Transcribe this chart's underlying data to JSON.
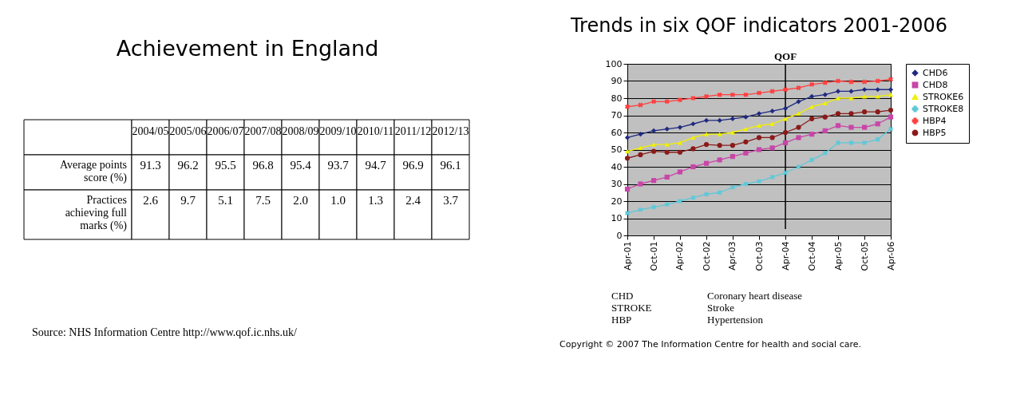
{
  "chart_data": [
    {
      "type": "other",
      "title": "Achievement in England",
      "categories": [
        "2004/05",
        "2005/06",
        "2006/07",
        "2007/08",
        "2008/09",
        "2009/10",
        "2010/11",
        "2011/12",
        "2012/13"
      ],
      "data_labels": true,
      "series": [
        {
          "name": "Average points score (%)",
          "values": [
            91.3,
            96.2,
            95.5,
            96.8,
            95.4,
            93.7,
            94.7,
            96.9,
            96.1
          ]
        },
        {
          "name": "Practices achieving full marks (%)",
          "values": [
            2.6,
            9.7,
            5.1,
            7.5,
            2.0,
            1.0,
            1.3,
            2.4,
            3.7
          ],
          "value_labels": [
            "2.6",
            "9.7",
            "5.1",
            "7.5",
            "2.0",
            "1.0",
            "1.3",
            "2.4",
            "3.7"
          ]
        }
      ],
      "annotations": [
        "Source: NHS Information Centre http://www.qof.ic.nhs.uk/"
      ]
    },
    {
      "type": "line",
      "title": "Trends in six QOF indicators 2001-2006",
      "x": [
        "2001-04",
        "2001-07",
        "2001-10",
        "2002-01",
        "2002-04",
        "2002-07",
        "2002-10",
        "2003-01",
        "2003-04",
        "2003-07",
        "2003-10",
        "2004-01",
        "2004-04",
        "2004-07",
        "2004-10",
        "2005-01",
        "2005-04",
        "2005-07",
        "2005-10",
        "2006-01",
        "2006-04"
      ],
      "xlim": [
        "2001-04",
        "2006-04"
      ],
      "xticks": [
        {
          "value": "2001-04",
          "label": "Apr-01"
        },
        {
          "value": "2001-10",
          "label": "Oct-01"
        },
        {
          "value": "2002-04",
          "label": "Apr-02"
        },
        {
          "value": "2002-10",
          "label": "Oct-02"
        },
        {
          "value": "2003-04",
          "label": "Apr-03"
        },
        {
          "value": "2003-10",
          "label": "Oct-03"
        },
        {
          "value": "2004-04",
          "label": "Apr-04"
        },
        {
          "value": "2004-10",
          "label": "Oct-04"
        },
        {
          "value": "2005-04",
          "label": "Apr-05"
        },
        {
          "value": "2005-10",
          "label": "Oct-05"
        },
        {
          "value": "2006-04",
          "label": "Apr-06"
        }
      ],
      "ylim": [
        0,
        100
      ],
      "yticks": [
        0,
        10,
        20,
        30,
        40,
        50,
        60,
        70,
        80,
        90,
        100
      ],
      "grid": "y",
      "legend": "right",
      "series": [
        {
          "name": "CHD6",
          "color": "#1f2a80",
          "marker": "diamond",
          "values": [
            57,
            59,
            61,
            62,
            63,
            65,
            67,
            67,
            68,
            69,
            71,
            72.5,
            74,
            78,
            81,
            82,
            84,
            84,
            85,
            85,
            85
          ]
        },
        {
          "name": "CHD8",
          "color": "#c846a8",
          "marker": "square",
          "values": [
            27,
            30,
            32,
            34,
            37,
            40,
            42,
            44,
            46,
            48,
            50,
            51,
            54,
            57,
            59,
            61,
            64,
            63,
            63,
            65,
            69
          ]
        },
        {
          "name": "STROKE6",
          "color": "#f0f000",
          "marker": "triangle",
          "values": [
            49,
            51,
            53,
            53,
            54,
            57,
            59,
            59,
            60,
            62,
            64,
            65,
            68,
            71,
            75,
            77,
            80,
            80,
            81,
            81,
            82
          ]
        },
        {
          "name": "STROKE8",
          "color": "#5fc8d8",
          "marker": "cross",
          "values": [
            13,
            15,
            16.5,
            18,
            20,
            22,
            24,
            25,
            28,
            30,
            31.5,
            34,
            36.5,
            40,
            44,
            48,
            54,
            54,
            54,
            56,
            62
          ]
        },
        {
          "name": "HBP4",
          "color": "#ff4040",
          "marker": "cross",
          "values": [
            75,
            76,
            78,
            78,
            79,
            80,
            81,
            82,
            82,
            82,
            83,
            84,
            85,
            86,
            88,
            89,
            90,
            89.5,
            89.5,
            90,
            91
          ]
        },
        {
          "name": "HBP5",
          "color": "#8b1a1a",
          "marker": "circle",
          "values": [
            45,
            47,
            49,
            48.5,
            48.5,
            50.5,
            53,
            52.5,
            52.5,
            54.5,
            57,
            57,
            60,
            63,
            68,
            69,
            71,
            71,
            72,
            72,
            73
          ]
        }
      ],
      "ref_lines": [
        {
          "axis": "x",
          "value": "2004-04",
          "label": "QOF"
        }
      ],
      "annotations": [
        "CHD",
        "Coronary heart disease",
        "STROKE",
        "Stroke",
        "HBP",
        "Hypertension",
        "Copyright © 2007 The Information Centre for health and social care."
      ]
    }
  ]
}
